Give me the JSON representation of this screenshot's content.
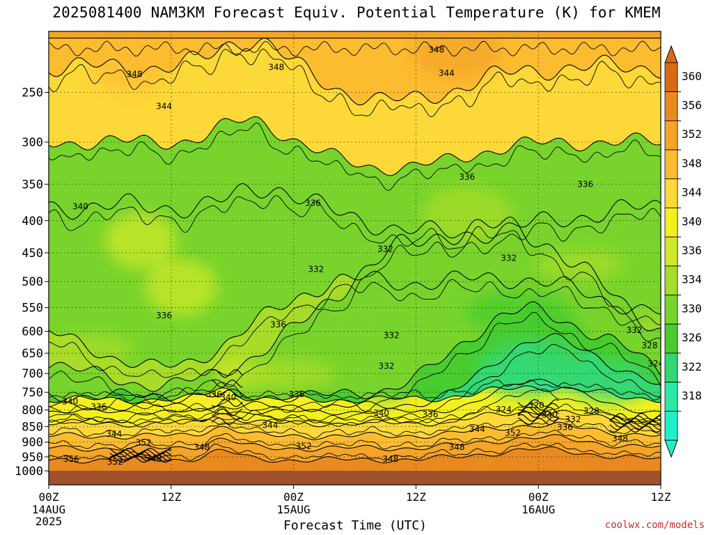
{
  "title": "2025081400 NAM3KM Forecast Equiv. Potential Temperature (K) for KMEM",
  "credit": "coolwx.com/models",
  "chart_data": {
    "type": "heatmap",
    "title": "2025081400 NAM3KM Forecast Equiv. Potential Temperature (K) for KMEM",
    "xlabel": "Forecast Time (UTC)",
    "ylabel": "",
    "x_range_hours": [
      0,
      60
    ],
    "y_range_hPa": [
      1000,
      200
    ],
    "y_scale": "log",
    "grid": true,
    "x_ticks": [
      {
        "hour": 0,
        "label": "00Z",
        "sub": [
          "14AUG",
          "2025"
        ]
      },
      {
        "hour": 12,
        "label": "12Z",
        "sub": []
      },
      {
        "hour": 24,
        "label": "00Z",
        "sub": [
          "15AUG"
        ]
      },
      {
        "hour": 36,
        "label": "12Z",
        "sub": []
      },
      {
        "hour": 48,
        "label": "00Z",
        "sub": [
          "16AUG"
        ]
      },
      {
        "hour": 60,
        "label": "12Z",
        "sub": []
      }
    ],
    "y_ticks": [
      250,
      300,
      350,
      400,
      450,
      500,
      550,
      600,
      650,
      700,
      750,
      800,
      850,
      900,
      950,
      1000
    ],
    "colorbar": {
      "labels": [
        360,
        356,
        352,
        348,
        344,
        340,
        336,
        334,
        330,
        326,
        322,
        318
      ],
      "colors": [
        "#d86a16",
        "#e88a20",
        "#f4a428",
        "#fcbc30",
        "#fcd838",
        "#f4f020",
        "#cfe82a",
        "#a8dc2a",
        "#78d42c",
        "#48cc2e",
        "#34d873",
        "#2ae8a6",
        "#20f0c8"
      ]
    },
    "contour_labels": [
      {
        "hour": 38.0,
        "hPa": 214,
        "value": 348
      },
      {
        "hour": 22.3,
        "hPa": 228,
        "value": 348
      },
      {
        "hour": 8.4,
        "hPa": 234,
        "value": 348
      },
      {
        "hour": 39.0,
        "hPa": 233,
        "value": 344
      },
      {
        "hour": 11.3,
        "hPa": 263,
        "value": 344
      },
      {
        "hour": 41.0,
        "hPa": 341,
        "value": 336
      },
      {
        "hour": 52.6,
        "hPa": 350,
        "value": 336
      },
      {
        "hour": 3.1,
        "hPa": 380,
        "value": 340
      },
      {
        "hour": 25.9,
        "hPa": 375,
        "value": 336
      },
      {
        "hour": 33.0,
        "hPa": 444,
        "value": 332
      },
      {
        "hour": 45.1,
        "hPa": 459,
        "value": 332
      },
      {
        "hour": 26.2,
        "hPa": 478,
        "value": 332
      },
      {
        "hour": 11.3,
        "hPa": 566,
        "value": 336
      },
      {
        "hour": 22.5,
        "hPa": 585,
        "value": 336
      },
      {
        "hour": 33.6,
        "hPa": 609,
        "value": 332
      },
      {
        "hour": 33.1,
        "hPa": 681,
        "value": 332
      },
      {
        "hour": 57.4,
        "hPa": 597,
        "value": 332
      },
      {
        "hour": 58.9,
        "hPa": 632,
        "value": 328
      },
      {
        "hour": 59.5,
        "hPa": 675,
        "value": 324
      },
      {
        "hour": 16.2,
        "hPa": 755,
        "value": 336
      },
      {
        "hour": 17.6,
        "hPa": 764,
        "value": 340
      },
      {
        "hour": 24.3,
        "hPa": 755,
        "value": 336
      },
      {
        "hour": 2.1,
        "hPa": 776,
        "value": 340
      },
      {
        "hour": 4.9,
        "hPa": 791,
        "value": 336
      },
      {
        "hour": 53.2,
        "hPa": 803,
        "value": 328
      },
      {
        "hour": 47.8,
        "hPa": 787,
        "value": 320
      },
      {
        "hour": 44.6,
        "hPa": 799,
        "value": 324
      },
      {
        "hour": 49.1,
        "hPa": 814,
        "value": 340
      },
      {
        "hour": 51.4,
        "hPa": 828,
        "value": 332
      },
      {
        "hour": 32.6,
        "hPa": 809,
        "value": 340
      },
      {
        "hour": 37.4,
        "hPa": 813,
        "value": 336
      },
      {
        "hour": 21.7,
        "hPa": 846,
        "value": 344
      },
      {
        "hour": 50.6,
        "hPa": 853,
        "value": 336
      },
      {
        "hour": 42.0,
        "hPa": 858,
        "value": 344
      },
      {
        "hour": 6.4,
        "hPa": 873,
        "value": 344
      },
      {
        "hour": 45.5,
        "hPa": 870,
        "value": 352
      },
      {
        "hour": 56.0,
        "hPa": 888,
        "value": 348
      },
      {
        "hour": 9.3,
        "hPa": 902,
        "value": 352
      },
      {
        "hour": 15.0,
        "hPa": 917,
        "value": 348
      },
      {
        "hour": 25.0,
        "hPa": 913,
        "value": 352
      },
      {
        "hour": 40.0,
        "hPa": 917,
        "value": 348
      },
      {
        "hour": 2.2,
        "hPa": 958,
        "value": 356
      },
      {
        "hour": 6.5,
        "hPa": 968,
        "value": 352
      },
      {
        "hour": 10.3,
        "hPa": 955,
        "value": 348
      },
      {
        "hour": 33.5,
        "hPa": 958,
        "value": 348
      }
    ]
  }
}
